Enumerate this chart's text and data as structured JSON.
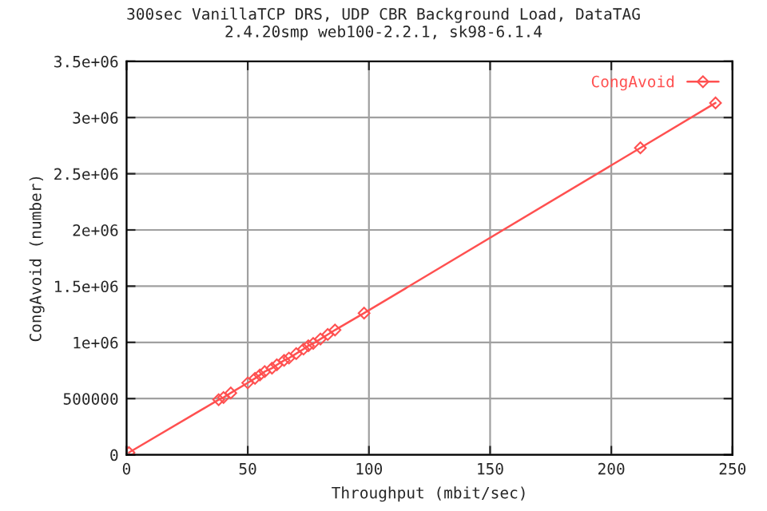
{
  "chart_data": {
    "type": "line",
    "title": "300sec VanillaTCP DRS, UDP CBR Background Load, DataTAG\n2.4.20smp web100-2.2.1, sk98-6.1.4",
    "xlabel": "Throughput (mbit/sec)",
    "ylabel": "CongAvoid (number)",
    "series": [
      {
        "name": "CongAvoid",
        "color": "#ff5050",
        "x": [
          1,
          38,
          40,
          43,
          50,
          53,
          55,
          57,
          60,
          62,
          65,
          67,
          70,
          73,
          75,
          77,
          80,
          83,
          86,
          98,
          212,
          243
        ],
        "values": [
          20000,
          490000,
          510000,
          550000,
          640000,
          680000,
          710000,
          740000,
          770000,
          800000,
          840000,
          860000,
          900000,
          940000,
          970000,
          990000,
          1030000,
          1070000,
          1110000,
          1260000,
          2730000,
          3130000
        ]
      }
    ],
    "xlim": [
      0,
      250
    ],
    "xticks": [
      0,
      50,
      100,
      150,
      200,
      250
    ],
    "ylim": [
      0,
      3500000
    ],
    "yticks": [
      {
        "value": 0,
        "label": "0"
      },
      {
        "value": 500000,
        "label": "500000"
      },
      {
        "value": 1000000,
        "label": "1e+06"
      },
      {
        "value": 1500000,
        "label": "1.5e+06"
      },
      {
        "value": 2000000,
        "label": "2e+06"
      },
      {
        "value": 2500000,
        "label": "2.5e+06"
      },
      {
        "value": 3000000,
        "label": "3e+06"
      },
      {
        "value": 3500000,
        "label": "3.5e+06"
      }
    ],
    "grid": true,
    "legend": "top right",
    "marker": "diamond",
    "line_style": "solid"
  }
}
